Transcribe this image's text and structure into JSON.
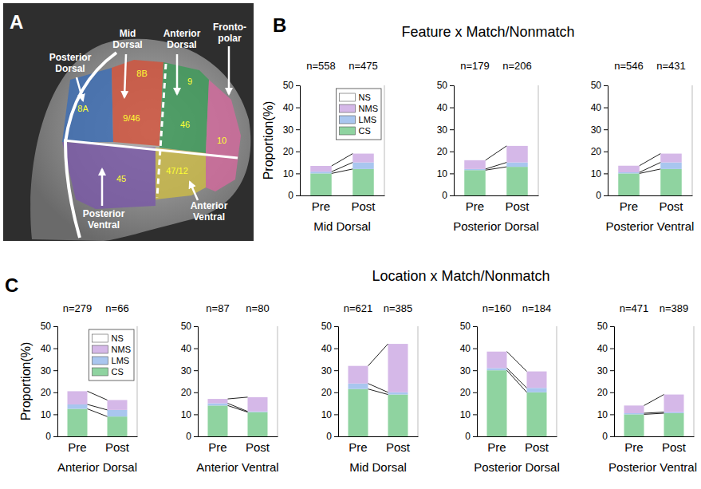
{
  "panels": [
    {
      "letter": "A"
    },
    {
      "letter": "B",
      "title": "Feature x Match/Nonmatch"
    },
    {
      "letter": "C",
      "title": "Location x Match/Nonmatch"
    }
  ],
  "diagram": {
    "regions": [
      "8A",
      "8B",
      "9/46",
      "9",
      "46",
      "10",
      "45",
      "47/12"
    ],
    "areas": [
      "Posterior Dorsal",
      "Mid Dorsal",
      "Anterior Dorsal",
      "Fronto-polar",
      "Posterior Ventral",
      "Anterior Ventral"
    ]
  },
  "chart_data": [
    {
      "type": "bar",
      "stacked": true,
      "categories": [
        "Pre",
        "Post"
      ],
      "x_label": "Mid Dorsal",
      "y_label": "Proportion(%)",
      "annotations": [
        "n=558",
        "n=475"
      ],
      "ylim": [
        0,
        50
      ],
      "yticks": [
        0,
        10,
        20,
        30,
        40,
        50
      ],
      "legend": "upper right",
      "series": [
        {
          "name": "NS",
          "color": "#ffffff",
          "values": [
            null,
            null
          ]
        },
        {
          "name": "NMS",
          "color": "#d5b8e8",
          "values": [
            2.6,
            4
          ]
        },
        {
          "name": "LMS",
          "color": "#a9c6ef",
          "values": [
            0.8,
            3
          ]
        },
        {
          "name": "CS",
          "color": "#8fd3a0",
          "values": [
            10,
            12
          ]
        }
      ]
    },
    {
      "type": "bar",
      "stacked": true,
      "categories": [
        "Pre",
        "Post"
      ],
      "x_label": "Posterior Dorsal",
      "annotations": [
        "n=179",
        "n=206"
      ],
      "ylim": [
        0,
        50
      ],
      "yticks": [
        0,
        10,
        20,
        30,
        40,
        50
      ],
      "series": [
        {
          "name": "NS",
          "color": "#ffffff",
          "values": [
            null,
            null
          ]
        },
        {
          "name": "NMS",
          "color": "#d5b8e8",
          "values": [
            4,
            7.5
          ]
        },
        {
          "name": "LMS",
          "color": "#a9c6ef",
          "values": [
            0.5,
            2
          ]
        },
        {
          "name": "CS",
          "color": "#8fd3a0",
          "values": [
            11.5,
            13
          ]
        }
      ]
    },
    {
      "type": "bar",
      "stacked": true,
      "categories": [
        "Pre",
        "Post"
      ],
      "x_label": "Posterior Ventral",
      "annotations": [
        "n=546",
        "n=431"
      ],
      "ylim": [
        0,
        50
      ],
      "yticks": [
        0,
        10,
        20,
        30,
        40,
        50
      ],
      "series": [
        {
          "name": "NS",
          "color": "#ffffff",
          "values": [
            null,
            null
          ]
        },
        {
          "name": "NMS",
          "color": "#d5b8e8",
          "values": [
            3,
            4
          ]
        },
        {
          "name": "LMS",
          "color": "#a9c6ef",
          "values": [
            0.5,
            3
          ]
        },
        {
          "name": "CS",
          "color": "#8fd3a0",
          "values": [
            10,
            12
          ]
        }
      ]
    },
    {
      "type": "bar",
      "stacked": true,
      "categories": [
        "Pre",
        "Post"
      ],
      "x_label": "Anterior Dorsal",
      "y_label": "Proportion(%)",
      "annotations": [
        "n=279",
        "n=66"
      ],
      "ylim": [
        0,
        50
      ],
      "yticks": [
        0,
        10,
        20,
        30,
        40,
        50
      ],
      "legend": "upper right",
      "series": [
        {
          "name": "NS",
          "color": "#ffffff",
          "values": [
            null,
            null
          ]
        },
        {
          "name": "NMS",
          "color": "#d5b8e8",
          "values": [
            6,
            4.5
          ]
        },
        {
          "name": "LMS",
          "color": "#a9c6ef",
          "values": [
            2,
            3
          ]
        },
        {
          "name": "CS",
          "color": "#8fd3a0",
          "values": [
            12.5,
            9
          ]
        }
      ]
    },
    {
      "type": "bar",
      "stacked": true,
      "categories": [
        "Pre",
        "Post"
      ],
      "x_label": "Anterior Ventral",
      "annotations": [
        "n=87",
        "n=80"
      ],
      "ylim": [
        0,
        50
      ],
      "yticks": [
        0,
        10,
        20,
        30,
        40,
        50
      ],
      "series": [
        {
          "name": "NS",
          "color": "#ffffff",
          "values": [
            null,
            null
          ]
        },
        {
          "name": "NMS",
          "color": "#d5b8e8",
          "values": [
            2,
            6.5
          ]
        },
        {
          "name": "LMS",
          "color": "#a9c6ef",
          "values": [
            1,
            0.3
          ]
        },
        {
          "name": "CS",
          "color": "#8fd3a0",
          "values": [
            14,
            11
          ]
        }
      ]
    },
    {
      "type": "bar",
      "stacked": true,
      "categories": [
        "Pre",
        "Post"
      ],
      "x_label": "Mid Dorsal",
      "annotations": [
        "n=621",
        "n=385"
      ],
      "ylim": [
        0,
        50
      ],
      "yticks": [
        0,
        10,
        20,
        30,
        40,
        50
      ],
      "series": [
        {
          "name": "NS",
          "color": "#ffffff",
          "values": [
            null,
            null
          ]
        },
        {
          "name": "NMS",
          "color": "#d5b8e8",
          "values": [
            8,
            22
          ]
        },
        {
          "name": "LMS",
          "color": "#a9c6ef",
          "values": [
            2.5,
            1
          ]
        },
        {
          "name": "CS",
          "color": "#8fd3a0",
          "values": [
            21.5,
            19
          ]
        }
      ]
    },
    {
      "type": "bar",
      "stacked": true,
      "categories": [
        "Pre",
        "Post"
      ],
      "x_label": "Posterior Dorsal",
      "annotations": [
        "n=160",
        "n=184"
      ],
      "ylim": [
        0,
        50
      ],
      "yticks": [
        0,
        10,
        20,
        30,
        40,
        50
      ],
      "series": [
        {
          "name": "NS",
          "color": "#ffffff",
          "values": [
            null,
            null
          ]
        },
        {
          "name": "NMS",
          "color": "#d5b8e8",
          "values": [
            7.5,
            7.5
          ]
        },
        {
          "name": "LMS",
          "color": "#a9c6ef",
          "values": [
            1,
            2
          ]
        },
        {
          "name": "CS",
          "color": "#8fd3a0",
          "values": [
            30,
            20
          ]
        }
      ]
    },
    {
      "type": "bar",
      "stacked": true,
      "categories": [
        "Pre",
        "Post"
      ],
      "x_label": "Posterior Ventral",
      "annotations": [
        "n=471",
        "n=389"
      ],
      "ylim": [
        0,
        50
      ],
      "yticks": [
        0,
        10,
        20,
        30,
        40,
        50
      ],
      "series": [
        {
          "name": "NS",
          "color": "#ffffff",
          "values": [
            null,
            null
          ]
        },
        {
          "name": "NMS",
          "color": "#d5b8e8",
          "values": [
            3.5,
            8
          ]
        },
        {
          "name": "LMS",
          "color": "#a9c6ef",
          "values": [
            0.5,
            0.5
          ]
        },
        {
          "name": "CS",
          "color": "#8fd3a0",
          "values": [
            10,
            10.5
          ]
        }
      ]
    }
  ]
}
